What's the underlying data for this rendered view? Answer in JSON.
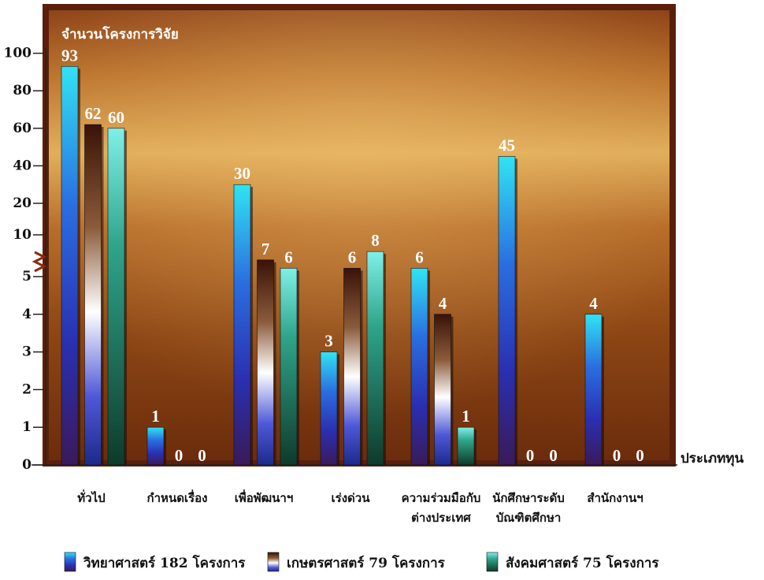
{
  "chart_data": {
    "type": "bar",
    "ylabel": "จำนวนโครงการวิจัย",
    "xlabel": "ประเภททุน",
    "categories": [
      [
        "ทั่วไป"
      ],
      [
        "กำหนดเรื่อง"
      ],
      [
        "เพื่อพัฒนาฯ"
      ],
      [
        "เร่งด่วน"
      ],
      [
        "ความร่วมมือกับ",
        "ต่างประเทศ"
      ],
      [
        "นักศึกษาระดับ",
        "บัณฑิตศึกษา"
      ],
      [
        "สำนักงานฯ"
      ]
    ],
    "series": [
      {
        "name": "วิทยาศาสตร์ 182 โครงการ",
        "values": [
          93,
          1,
          30,
          3,
          6,
          45,
          4
        ],
        "color": "#2fd2f0"
      },
      {
        "name": "เกษตรศาสตร์  79 โครงการ",
        "values": [
          62,
          0,
          7,
          6,
          4,
          0,
          0
        ],
        "color": "#7a3b22"
      },
      {
        "name": "สังคมศาสตร์  75 โครงการ",
        "values": [
          60,
          0,
          6,
          8,
          1,
          0,
          0
        ],
        "color": "#1f8a66"
      }
    ],
    "y_ticks": [
      "0",
      "1",
      "2",
      "3",
      "4",
      "5",
      "10",
      "20",
      "40",
      "60",
      "80",
      "100"
    ],
    "scale": "broken axis: linear 0–5 below the break, compressed 10–100 above it",
    "legend_position": "bottom",
    "grid": false,
    "background": "copper gradient panel with dark brown border"
  }
}
